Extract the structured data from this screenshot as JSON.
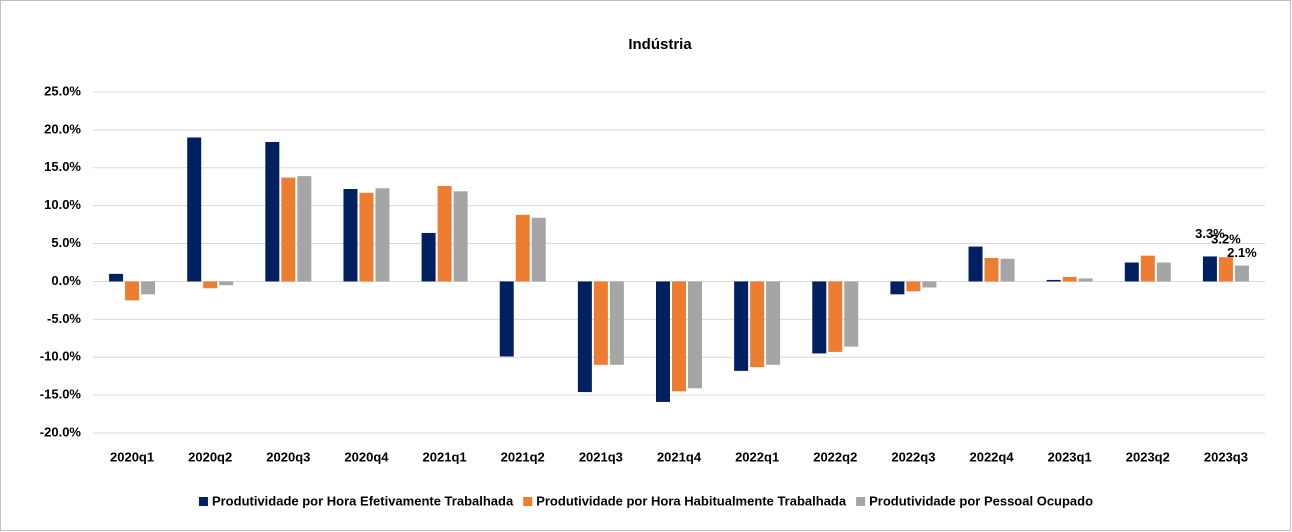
{
  "chart_data": {
    "type": "bar",
    "title": "Indústria",
    "categories": [
      "2020q1",
      "2020q2",
      "2020q3",
      "2020q4",
      "2021q1",
      "2021q2",
      "2021q3",
      "2021q4",
      "2022q1",
      "2022q2",
      "2022q3",
      "2022q4",
      "2023q1",
      "2023q2",
      "2023q3"
    ],
    "series": [
      {
        "name": "Produtividade por Hora Efetivamente Trabalhada",
        "color": "#002060",
        "values": [
          1.0,
          19.0,
          18.4,
          12.2,
          6.4,
          -9.9,
          -14.6,
          -15.9,
          -11.8,
          -9.5,
          -1.7,
          4.6,
          0.2,
          2.5,
          3.3
        ],
        "value_labels": [
          null,
          null,
          null,
          null,
          null,
          null,
          null,
          null,
          null,
          null,
          null,
          null,
          null,
          null,
          "3.3%"
        ]
      },
      {
        "name": "Produtividade por Hora Habitualmente Trabalhada",
        "color": "#ed7d31",
        "values": [
          -2.5,
          -0.9,
          13.7,
          11.7,
          12.6,
          8.8,
          -11.0,
          -14.5,
          -11.3,
          -9.3,
          -1.3,
          3.1,
          0.6,
          3.4,
          3.2
        ],
        "value_labels": [
          null,
          null,
          null,
          null,
          null,
          null,
          null,
          null,
          null,
          null,
          null,
          null,
          null,
          null,
          "3.2%"
        ]
      },
      {
        "name": "Produtividade por Pessoal Ocupado",
        "color": "#a5a5a5",
        "values": [
          -1.7,
          -0.5,
          13.9,
          12.3,
          11.9,
          8.4,
          -11.0,
          -14.1,
          -11.0,
          -8.6,
          -0.8,
          3.0,
          0.4,
          2.5,
          2.1
        ],
        "value_labels": [
          null,
          null,
          null,
          null,
          null,
          null,
          null,
          null,
          null,
          null,
          null,
          null,
          null,
          null,
          "2.1%"
        ]
      }
    ],
    "ylim": [
      -20,
      25
    ],
    "yticks": [
      {
        "value": -20,
        "label": "-20.0%"
      },
      {
        "value": -15,
        "label": "-15.0%"
      },
      {
        "value": -10,
        "label": "-10.0%"
      },
      {
        "value": -5,
        "label": "-5.0%"
      },
      {
        "value": 0,
        "label": "0.0%"
      },
      {
        "value": 5,
        "label": "5.0%"
      },
      {
        "value": 10,
        "label": "10.0%"
      },
      {
        "value": 15,
        "label": "15.0%"
      },
      {
        "value": 20,
        "label": "20.0%"
      },
      {
        "value": 25,
        "label": "25.0%"
      }
    ],
    "grid": true,
    "legend": "bottom"
  }
}
